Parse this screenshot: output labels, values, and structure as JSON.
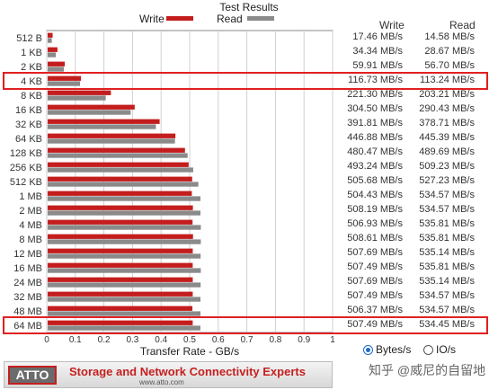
{
  "chart_data": {
    "type": "bar",
    "title": "Test Results",
    "legend": [
      {
        "name": "Write",
        "color": "#c41d1d"
      },
      {
        "name": "Read",
        "color": "#8a8a8a"
      }
    ],
    "legend_position": "top",
    "categories": [
      "512 B",
      "1 KB",
      "2 KB",
      "4 KB",
      "8 KB",
      "16 KB",
      "32 KB",
      "64 KB",
      "128 KB",
      "256 KB",
      "512 KB",
      "1 MB",
      "2 MB",
      "4 MB",
      "8 MB",
      "12 MB",
      "16 MB",
      "24 MB",
      "32 MB",
      "48 MB",
      "64 MB"
    ],
    "series": [
      {
        "name": "Write",
        "color": "#c41d1d",
        "values": [
          0.01746,
          0.03434,
          0.05991,
          0.11673,
          0.2213,
          0.3045,
          0.39181,
          0.44688,
          0.48047,
          0.49324,
          0.50568,
          0.50443,
          0.50819,
          0.50693,
          0.50861,
          0.50769,
          0.50749,
          0.50769,
          0.50749,
          0.50637,
          0.50749
        ],
        "labels": [
          "17.46 MB/s",
          "34.34 MB/s",
          "59.91 MB/s",
          "116.73 MB/s",
          "221.30 MB/s",
          "304.50 MB/s",
          "391.81 MB/s",
          "446.88 MB/s",
          "480.47 MB/s",
          "493.24 MB/s",
          "505.68 MB/s",
          "504.43 MB/s",
          "508.19 MB/s",
          "506.93 MB/s",
          "508.61 MB/s",
          "507.69 MB/s",
          "507.49 MB/s",
          "507.69 MB/s",
          "507.49 MB/s",
          "506.37 MB/s",
          "507.49 MB/s"
        ]
      },
      {
        "name": "Read",
        "color": "#8a8a8a",
        "values": [
          0.01458,
          0.02867,
          0.0567,
          0.11324,
          0.20321,
          0.29043,
          0.37871,
          0.44539,
          0.48969,
          0.50923,
          0.52723,
          0.53457,
          0.53457,
          0.53581,
          0.53581,
          0.53514,
          0.53581,
          0.53514,
          0.53457,
          0.53457,
          0.53445
        ],
        "labels": [
          "14.58 MB/s",
          "28.67 MB/s",
          "56.70 MB/s",
          "113.24 MB/s",
          "203.21 MB/s",
          "290.43 MB/s",
          "378.71 MB/s",
          "445.39 MB/s",
          "489.69 MB/s",
          "509.23 MB/s",
          "527.23 MB/s",
          "534.57 MB/s",
          "534.57 MB/s",
          "535.81 MB/s",
          "535.81 MB/s",
          "535.14 MB/s",
          "535.81 MB/s",
          "535.14 MB/s",
          "534.57 MB/s",
          "534.57 MB/s",
          "534.45 MB/s"
        ]
      }
    ],
    "xlabel": "Transfer Rate - GB/s",
    "xlim": [
      0,
      1
    ],
    "xticks": [
      "0",
      "0.1",
      "0.2",
      "0.3",
      "0.4",
      "0.5",
      "0.6",
      "0.7",
      "0.8",
      "0.9",
      "1"
    ],
    "grid": true,
    "highlighted_categories": [
      "4 KB",
      "64 MB"
    ]
  },
  "columns": {
    "write": "Write",
    "read": "Read"
  },
  "units": {
    "selected": "Bytes/s",
    "options": [
      "Bytes/s",
      "IO/s"
    ]
  },
  "banner": {
    "logo": "ATTO",
    "tagline": "Storage and Network Connectivity Experts",
    "url": "www.atto.com"
  },
  "watermark": "知乎 @威尼的自留地",
  "colors": {
    "highlight": "#e02020",
    "accent": "#1a6cc8"
  }
}
